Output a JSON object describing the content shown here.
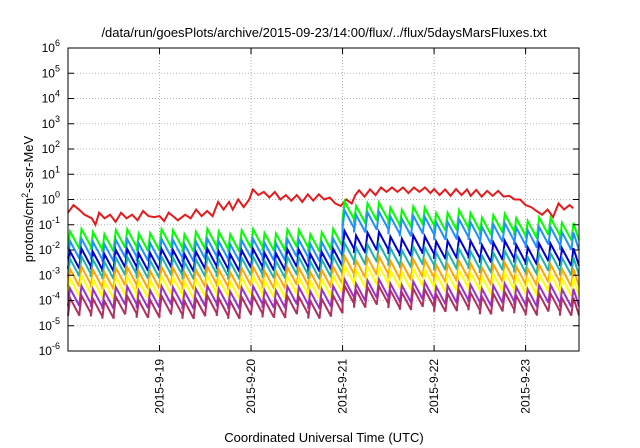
{
  "chart_data": {
    "type": "line",
    "title": "/data/run/goesPlots/archive/2015-09-23/14:00/flux/../flux/5daysMarsFluxes.txt",
    "xlabel": "Coordinated Universal Time (UTC)",
    "ylabel": {
      "prefix": "protons/cm",
      "sup": "2",
      "suffix": "-s-sr-MeV"
    },
    "xlim": [
      "2015-09-18 00:00",
      "2015-09-23 14:00"
    ],
    "ylim": [
      1e-06,
      1000000.0
    ],
    "yscale": "log",
    "grid": true,
    "x_ticks": [
      {
        "t": 1,
        "label": "2015-9-19"
      },
      {
        "t": 2,
        "label": "2015-9-20"
      },
      {
        "t": 3,
        "label": "2015-9-21"
      },
      {
        "t": 4,
        "label": "2015-9-22"
      },
      {
        "t": 5,
        "label": "2015-9-23"
      }
    ],
    "y_ticks": [
      {
        "exp": -6,
        "label": "10",
        "sup": "-6"
      },
      {
        "exp": -5,
        "label": "10",
        "sup": "-5"
      },
      {
        "exp": -4,
        "label": "10",
        "sup": "-4"
      },
      {
        "exp": -3,
        "label": "10",
        "sup": "-3"
      },
      {
        "exp": -2,
        "label": "10",
        "sup": "-2"
      },
      {
        "exp": -1,
        "label": "10",
        "sup": "-1"
      },
      {
        "exp": 0,
        "label": "10",
        "sup": "0"
      },
      {
        "exp": 1,
        "label": "10",
        "sup": "1"
      },
      {
        "exp": 2,
        "label": "10",
        "sup": "2"
      },
      {
        "exp": 3,
        "label": "10",
        "sup": "3"
      },
      {
        "exp": 4,
        "label": "10",
        "sup": "4"
      },
      {
        "exp": 5,
        "label": "10",
        "sup": "5"
      },
      {
        "exp": 6,
        "label": "10",
        "sup": "6"
      }
    ],
    "series": [
      {
        "color": "#e41a1c",
        "points": [
          [
            0.0,
            0.3
          ],
          [
            0.06,
            0.6
          ],
          [
            0.12,
            0.4
          ],
          [
            0.18,
            0.25
          ],
          [
            0.26,
            0.18
          ],
          [
            0.3,
            0.1
          ],
          [
            0.34,
            0.3
          ],
          [
            0.4,
            0.18
          ],
          [
            0.46,
            0.25
          ],
          [
            0.52,
            0.13
          ],
          [
            0.58,
            0.3
          ],
          [
            0.64,
            0.18
          ],
          [
            0.7,
            0.25
          ],
          [
            0.76,
            0.15
          ],
          [
            0.82,
            0.35
          ],
          [
            0.88,
            0.22
          ],
          [
            0.94,
            0.2
          ],
          [
            1.0,
            0.22
          ],
          [
            1.05,
            0.14
          ],
          [
            1.1,
            0.3
          ],
          [
            1.16,
            0.2
          ],
          [
            1.2,
            0.15
          ],
          [
            1.28,
            0.25
          ],
          [
            1.34,
            0.18
          ],
          [
            1.4,
            0.4
          ],
          [
            1.46,
            0.22
          ],
          [
            1.52,
            0.35
          ],
          [
            1.58,
            0.22
          ],
          [
            1.64,
            0.8
          ],
          [
            1.7,
            0.4
          ],
          [
            1.76,
            0.8
          ],
          [
            1.8,
            0.4
          ],
          [
            1.86,
            1.0
          ],
          [
            1.92,
            0.5
          ],
          [
            1.98,
            1.0
          ],
          [
            2.02,
            2.5
          ],
          [
            2.08,
            1.5
          ],
          [
            2.14,
            2.0
          ],
          [
            2.2,
            1.2
          ],
          [
            2.26,
            2.0
          ],
          [
            2.32,
            1.0
          ],
          [
            2.38,
            1.5
          ],
          [
            2.44,
            0.9
          ],
          [
            2.5,
            1.5
          ],
          [
            2.56,
            0.8
          ],
          [
            2.62,
            1.6
          ],
          [
            2.68,
            0.9
          ],
          [
            2.74,
            1.6
          ],
          [
            2.8,
            1.0
          ],
          [
            2.86,
            1.2
          ],
          [
            2.92,
            0.7
          ],
          [
            2.98,
            0.55
          ],
          [
            3.04,
            1.0
          ],
          [
            3.1,
            0.7
          ],
          [
            3.14,
            1.5
          ],
          [
            3.18,
            2.3
          ],
          [
            3.24,
            1.3
          ],
          [
            3.3,
            2.5
          ],
          [
            3.36,
            1.5
          ],
          [
            3.42,
            3.0
          ],
          [
            3.48,
            2.0
          ],
          [
            3.54,
            3.0
          ],
          [
            3.6,
            2.0
          ],
          [
            3.66,
            3.0
          ],
          [
            3.72,
            1.8
          ],
          [
            3.78,
            3.0
          ],
          [
            3.84,
            2.0
          ],
          [
            3.9,
            3.0
          ],
          [
            3.96,
            1.8
          ],
          [
            4.0,
            2.6
          ],
          [
            4.06,
            1.5
          ],
          [
            4.12,
            2.5
          ],
          [
            4.18,
            1.4
          ],
          [
            4.24,
            2.6
          ],
          [
            4.3,
            1.5
          ],
          [
            4.36,
            2.5
          ],
          [
            4.4,
            1.4
          ],
          [
            4.46,
            2.4
          ],
          [
            4.52,
            1.3
          ],
          [
            4.58,
            2.2
          ],
          [
            4.64,
            1.4
          ],
          [
            4.7,
            2.2
          ],
          [
            4.76,
            1.3
          ],
          [
            4.82,
            1.4
          ],
          [
            4.88,
            1.0
          ],
          [
            4.94,
            1.0
          ],
          [
            5.0,
            0.6
          ],
          [
            5.06,
            0.5
          ],
          [
            5.12,
            0.35
          ],
          [
            5.18,
            0.25
          ],
          [
            5.24,
            0.4
          ],
          [
            5.3,
            0.2
          ],
          [
            5.36,
            0.7
          ],
          [
            5.42,
            0.4
          ],
          [
            5.48,
            0.6
          ],
          [
            5.52,
            0.45
          ]
        ]
      },
      {
        "color": "#00ff00",
        "pre_base": 0.011,
        "peak": 0.18,
        "post_base": 0.012
      },
      {
        "color": "#1e90ff",
        "pre_base": 0.0045,
        "peak": 0.08,
        "post_base": 0.0045
      },
      {
        "color": "#0000cd",
        "pre_base": 0.0018,
        "peak": 0.012,
        "post_base": 0.0018
      },
      {
        "color": "#20b2aa",
        "pre_base": 0.0009,
        "peak": 0.004,
        "post_base": 0.0009
      },
      {
        "color": "#ffa500",
        "pre_base": 0.00035,
        "peak": 0.0012,
        "post_base": 0.00035
      },
      {
        "color": "#ffff00",
        "pre_base": 0.00015,
        "peak": 0.0005,
        "post_base": 0.00015
      },
      {
        "color": "#9932cc",
        "pre_base": 6e-05,
        "peak": 0.00014,
        "post_base": 6e-05
      },
      {
        "color": "#b03060",
        "pre_base": 2.5e-05,
        "peak": 8e-05,
        "post_base": 2.5e-05
      }
    ],
    "event_time": 2.9,
    "spike_ratio": 8,
    "spike_period": 0.125
  }
}
